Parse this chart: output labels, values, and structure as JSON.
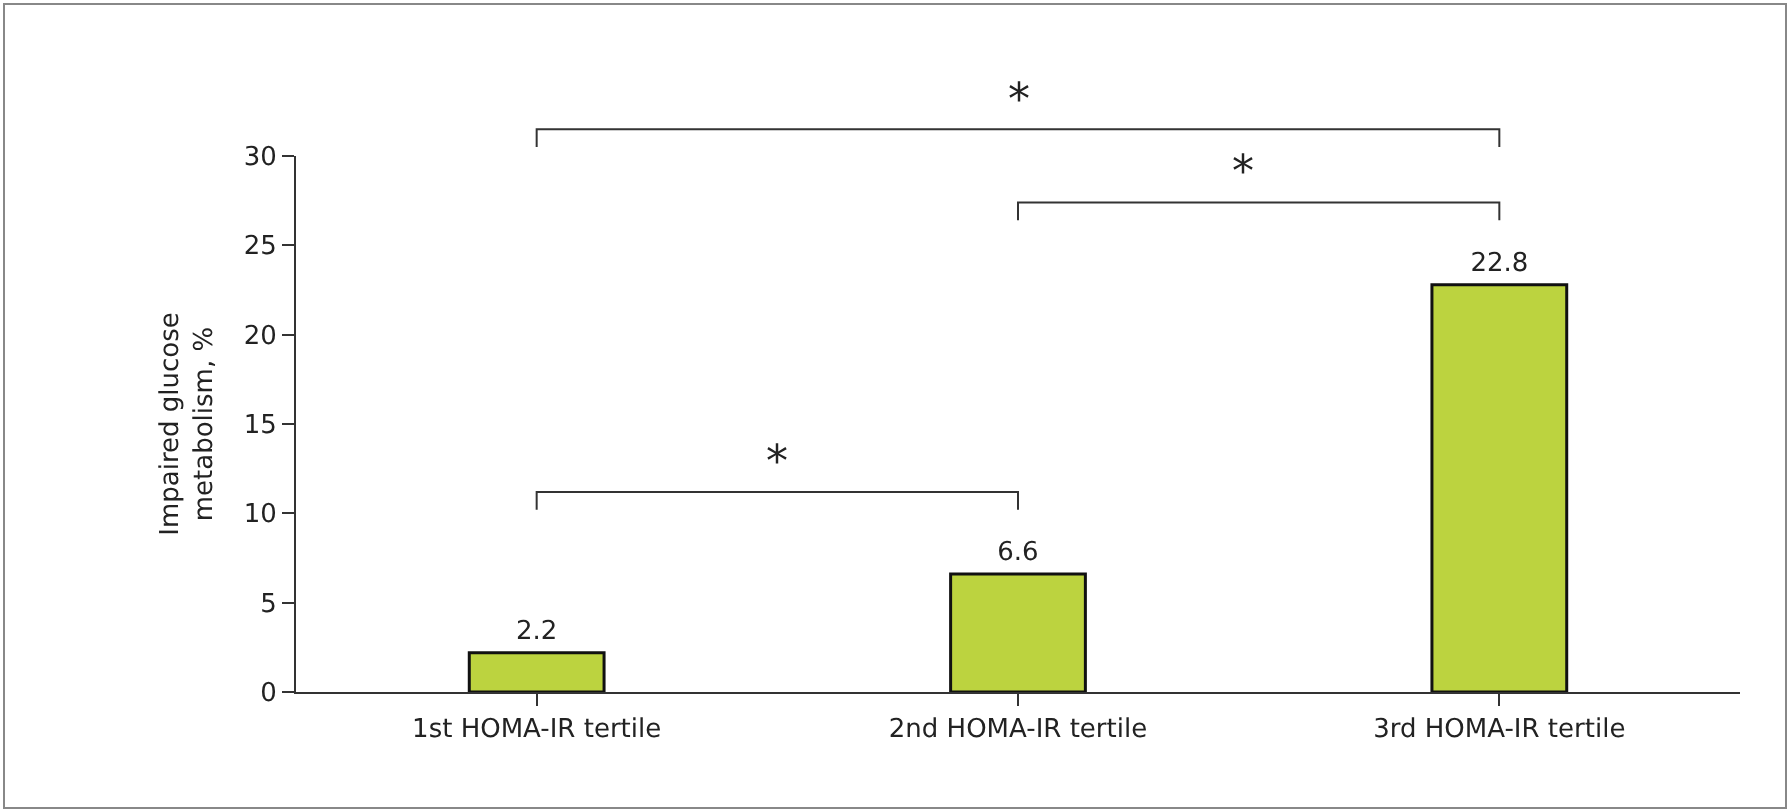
{
  "chart_data": {
    "type": "bar",
    "ylabel": "Impaired glucose metabolism, %",
    "categories": [
      "1st HOMA-IR tertile",
      "2nd HOMA-IR tertile",
      "3rd HOMA-IR tertile"
    ],
    "values": [
      2.2,
      6.6,
      22.8
    ],
    "color": "#bcd33f",
    "ylim": [
      0,
      30
    ],
    "yticks": [
      0,
      5,
      10,
      15,
      20,
      25,
      30
    ],
    "data_labels": true,
    "annotations": [
      "*",
      "*",
      "*"
    ]
  }
}
